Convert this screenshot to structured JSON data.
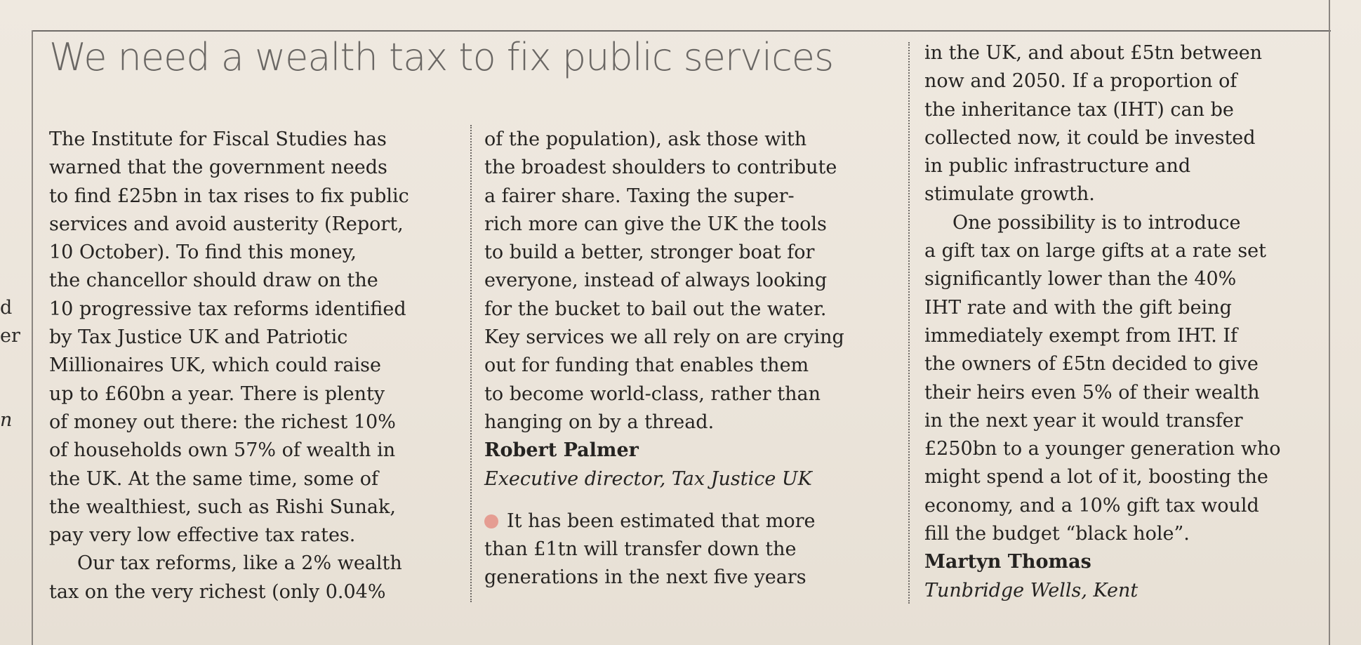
{
  "headline": "We need a wealth tax to fix public services",
  "margin_fragments": [
    "d",
    "er",
    "n"
  ],
  "column1": [
    "The Institute for Fiscal Studies has",
    "warned that the government needs",
    "to find £25bn in tax rises to fix public",
    "services and avoid austerity (Report,",
    "10 October). To find this money,",
    "the chancellor should draw on the",
    "10 progressive tax reforms identified",
    "by Tax Justice UK and Patriotic",
    "Millionaires UK, which could raise",
    "up to £60bn a year. There is plenty",
    "of money out there: the richest 10%",
    "of households own 57% of wealth in",
    "the UK. At the same time, some of",
    "the wealthiest, such as Rishi Sunak,",
    "pay very low effective tax rates.",
    "Our tax reforms, like a 2% wealth",
    "tax on the very richest (only 0.04%"
  ],
  "column2": [
    "of the population), ask those with",
    "the broadest shoulders to contribute",
    "a fairer share. Taxing the super-",
    "rich more can give the UK the tools",
    "to build a better, stronger boat for",
    "everyone, instead of always looking",
    "for the bucket to bail out the water.",
    "Key services we all rely on are crying",
    "out for funding that enables them",
    "to become world-class, rather than",
    "hanging on by a thread."
  ],
  "letter1_author": "Robert Palmer",
  "letter1_role": "Executive director, Tax Justice UK",
  "column2_letter2": [
    "It has been estimated that more",
    "than £1tn will transfer down the",
    "generations in the next five years"
  ],
  "column3": [
    "in the UK, and about £5tn between",
    "now and 2050. If a proportion of",
    "the inheritance tax (IHT) can be",
    "collected now, it could be invested",
    "in public infrastructure and",
    "stimulate growth.",
    "One possibility is to introduce",
    "a gift tax on large gifts at a rate set",
    "significantly lower than the 40%",
    "IHT rate and with the gift being",
    "immediately exempt from IHT. If",
    "the owners of £5tn decided to give",
    "their heirs even 5% of their wealth",
    "in the next year it would transfer",
    "£250bn to a younger generation who",
    "might spend a lot of it, boosting the",
    "economy, and a 10% gift tax would",
    "fill the budget “black hole”."
  ],
  "letter2_author": "Martyn Thomas",
  "letter2_location": "Tunbridge Wells, Kent",
  "colors": {
    "paper": "#ede6dc",
    "text": "#252321",
    "headline": "#6a6764",
    "bullet": "#e59d92"
  }
}
